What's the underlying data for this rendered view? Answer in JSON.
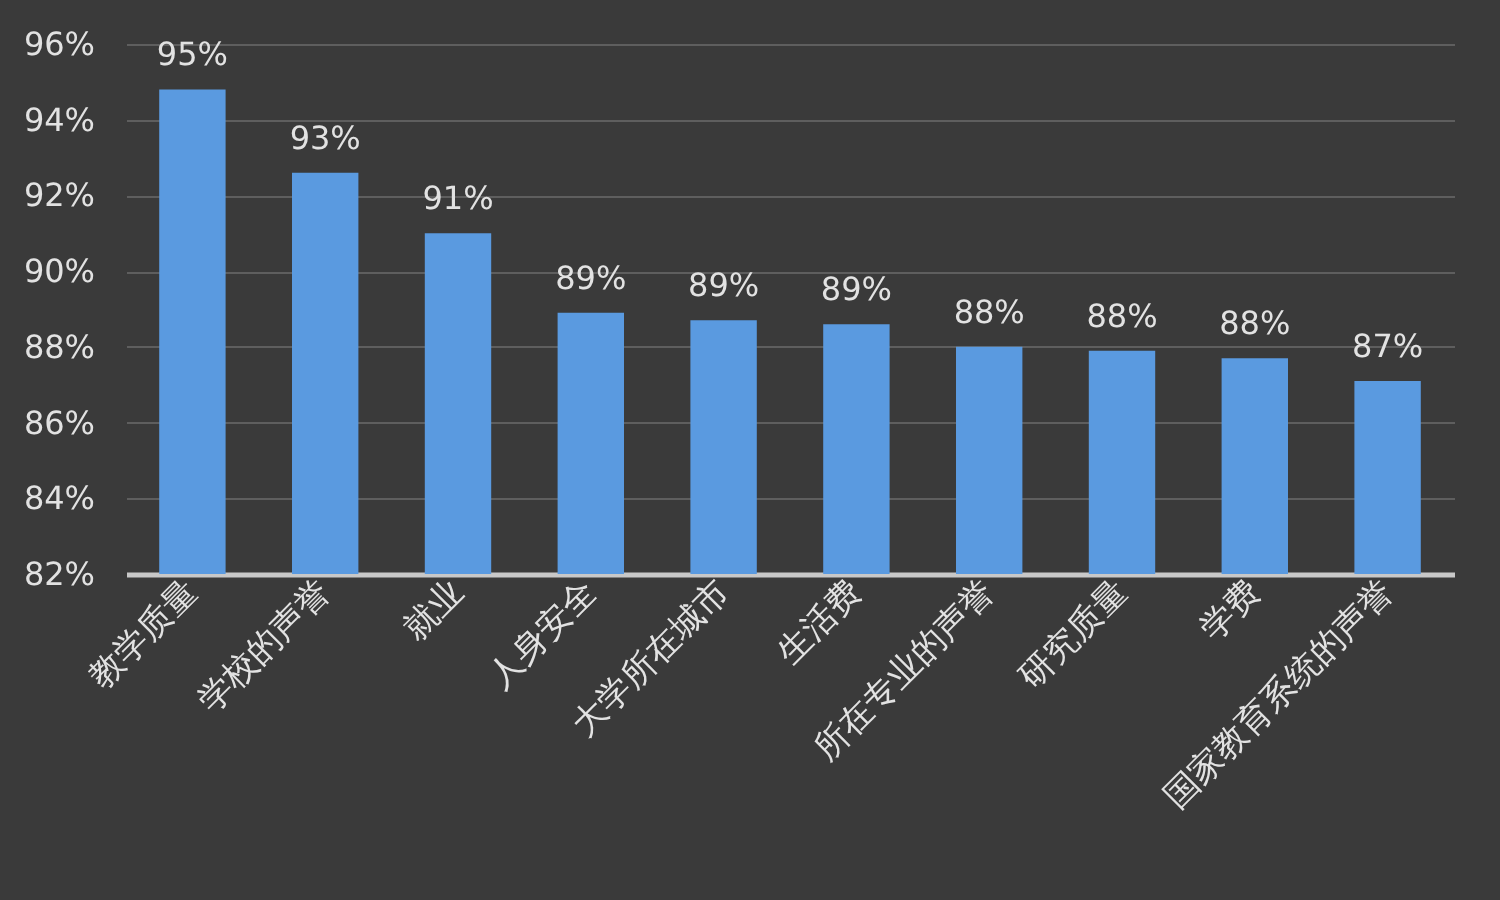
{
  "chart_data": {
    "type": "bar",
    "categories": [
      "教学质量",
      "学校的声誉",
      "就业",
      "人身安全",
      "大学所在城市",
      "生活费",
      "所在专业的声誉",
      "研究质量",
      "学费",
      "国家教育系统的声誉"
    ],
    "values": [
      94.8,
      92.6,
      91.0,
      88.9,
      88.7,
      88.6,
      88.0,
      87.9,
      87.7,
      87.1
    ],
    "value_labels": [
      "95%",
      "93%",
      "91%",
      "89%",
      "89%",
      "89%",
      "88%",
      "88%",
      "88%",
      "87%"
    ],
    "color": "#5a9ae0",
    "ylim": [
      82,
      96
    ],
    "yticks": [
      {
        "value": 82,
        "label": "82%"
      },
      {
        "value": 84,
        "label": "84%"
      },
      {
        "value": 86,
        "label": "86%"
      },
      {
        "value": 88,
        "label": "88%"
      },
      {
        "value": 90,
        "label": "90%"
      },
      {
        "value": 92,
        "label": "92%"
      },
      {
        "value": 94,
        "label": "94%"
      },
      {
        "value": 96,
        "label": "96%"
      }
    ],
    "grid": "y"
  }
}
